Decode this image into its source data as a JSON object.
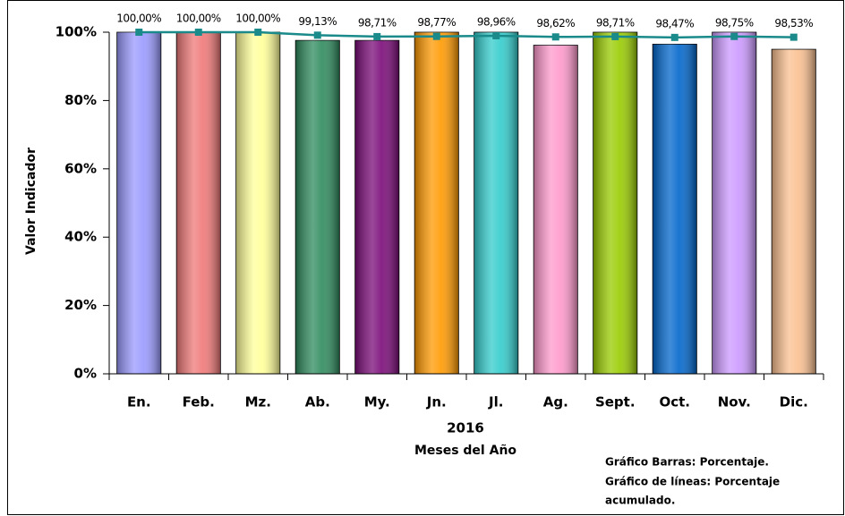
{
  "chart_data": {
    "type": "bar",
    "categories": [
      "En.",
      "Feb.",
      "Mz.",
      "Ab.",
      "My.",
      "Jn.",
      "Jl.",
      "Ag.",
      "Sept.",
      "Oct.",
      "Nov.",
      "Dic."
    ],
    "values": [
      100,
      100,
      100,
      97.6,
      97.6,
      100,
      100,
      96.2,
      100,
      96.5,
      100,
      95.0
    ],
    "colors": [
      "#9999ff",
      "#f07878",
      "#ffff99",
      "#2e8b5e",
      "#7a0a78",
      "#ff9900",
      "#33cccc",
      "#ff99cc",
      "#99cc00",
      "#0066cc",
      "#cc99ff",
      "#fac090"
    ],
    "line": {
      "color": "#1a8a8a",
      "values": [
        100,
        100,
        100,
        99.13,
        98.71,
        98.77,
        98.96,
        98.62,
        98.71,
        98.47,
        98.75,
        98.53
      ],
      "value_labels": [
        "100,00%",
        "100,00%",
        "100,00%",
        "99,13%",
        "98,71%",
        "98,77%",
        "98,96%",
        "98,62%",
        "98,71%",
        "98,47%",
        "98,75%",
        "98,53%"
      ]
    },
    "ylim": [
      0,
      100
    ],
    "yticks": [
      {
        "value": 0,
        "label": "0%"
      },
      {
        "value": 20,
        "label": "20%"
      },
      {
        "value": 40,
        "label": "40%"
      },
      {
        "value": 60,
        "label": "60%"
      },
      {
        "value": 80,
        "label": "80%"
      },
      {
        "value": 100,
        "label": "100%"
      }
    ],
    "y_label": "Valor Indicador",
    "x_label": [
      "2016",
      "Meses del Año"
    ],
    "note": [
      "Gráfico Barras: Porcentaje.",
      "Gráfico de líneas: Porcentaje",
      "acumulado."
    ]
  }
}
